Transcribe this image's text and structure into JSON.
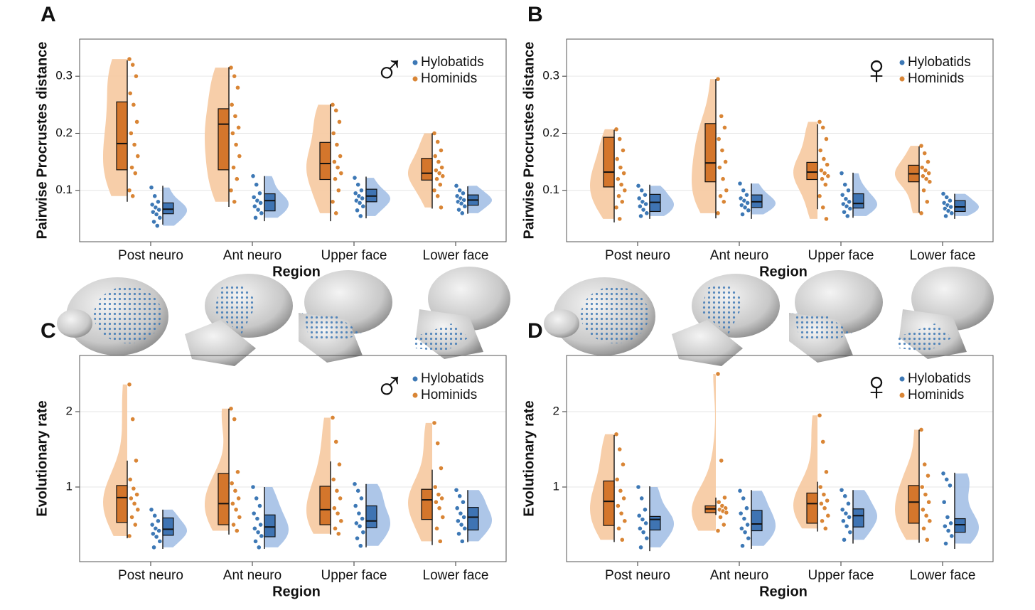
{
  "chart_data": [
    {
      "type": "raincloud",
      "panel": "A",
      "symbol": "♂",
      "ylabel": "Pairwise Procrustes distance",
      "xlabel": "Region",
      "categories": [
        "Post neuro",
        "Ant neuro",
        "Upper face",
        "Lower face"
      ],
      "ylim": [
        0.01,
        0.365
      ],
      "yticks": [
        0.1,
        0.2,
        0.3
      ],
      "grid": true,
      "legend": "upper right",
      "series": [
        {
          "name": "Hylobatids",
          "color": "#3d78b5",
          "fill": "#a4c0e6",
          "box_color": "#3f74b3",
          "boxes": [
            [
              0.04,
              0.059,
              0.067,
              0.078,
              0.108
            ],
            [
              0.046,
              0.064,
              0.082,
              0.094,
              0.125
            ],
            [
              0.051,
              0.08,
              0.09,
              0.102,
              0.124
            ],
            [
              0.059,
              0.074,
              0.083,
              0.092,
              0.107
            ]
          ],
          "points": [
            [
              0.105,
              0.09,
              0.08,
              0.075,
              0.07,
              0.066,
              0.062,
              0.058,
              0.052,
              0.045,
              0.038
            ],
            [
              0.125,
              0.11,
              0.095,
              0.088,
              0.082,
              0.078,
              0.072,
              0.066,
              0.06,
              0.052
            ],
            [
              0.122,
              0.11,
              0.1,
              0.095,
              0.09,
              0.086,
              0.082,
              0.078,
              0.072,
              0.065,
              0.055
            ],
            [
              0.108,
              0.1,
              0.095,
              0.09,
              0.086,
              0.083,
              0.08,
              0.077,
              0.072,
              0.066,
              0.06
            ]
          ]
        },
        {
          "name": "Hominids",
          "color": "#d98535",
          "fill": "#f6c9a0",
          "box_color": "#d4762c",
          "boxes": [
            [
              0.08,
              0.136,
              0.182,
              0.255,
              0.328
            ],
            [
              0.071,
              0.136,
              0.216,
              0.243,
              0.316
            ],
            [
              0.046,
              0.119,
              0.147,
              0.184,
              0.251
            ],
            [
              0.068,
              0.118,
              0.13,
              0.156,
              0.2
            ]
          ],
          "points": [
            [
              0.33,
              0.32,
              0.3,
              0.27,
              0.25,
              0.22,
              0.2,
              0.18,
              0.16,
              0.14,
              0.13,
              0.1,
              0.09
            ],
            [
              0.315,
              0.3,
              0.28,
              0.25,
              0.23,
              0.21,
              0.2,
              0.18,
              0.16,
              0.14,
              0.12,
              0.1,
              0.08
            ],
            [
              0.25,
              0.24,
              0.22,
              0.2,
              0.18,
              0.16,
              0.15,
              0.14,
              0.13,
              0.12,
              0.1,
              0.08,
              0.06
            ],
            [
              0.2,
              0.185,
              0.17,
              0.16,
              0.15,
              0.14,
              0.135,
              0.13,
              0.125,
              0.12,
              0.11,
              0.1,
              0.09,
              0.07
            ]
          ]
        }
      ]
    },
    {
      "type": "raincloud",
      "panel": "B",
      "symbol": "♀",
      "ylabel": "Pairwise Procrustes distance",
      "xlabel": "Region",
      "categories": [
        "Post neuro",
        "Ant neuro",
        "Upper face",
        "Lower face"
      ],
      "ylim": [
        0.01,
        0.365
      ],
      "yticks": [
        0.1,
        0.2,
        0.3
      ],
      "grid": true,
      "legend": "upper right",
      "series": [
        {
          "name": "Hylobatids",
          "color": "#3d78b5",
          "fill": "#a4c0e6",
          "box_color": "#3f74b3",
          "boxes": [
            [
              0.05,
              0.063,
              0.079,
              0.093,
              0.11
            ],
            [
              0.05,
              0.07,
              0.08,
              0.092,
              0.112
            ],
            [
              0.052,
              0.069,
              0.077,
              0.094,
              0.131
            ],
            [
              0.05,
              0.063,
              0.071,
              0.082,
              0.094
            ]
          ],
          "points": [
            [
              0.108,
              0.1,
              0.092,
              0.086,
              0.08,
              0.076,
              0.072,
              0.066,
              0.06,
              0.055
            ],
            [
              0.112,
              0.1,
              0.092,
              0.086,
              0.082,
              0.078,
              0.074,
              0.07,
              0.065,
              0.058
            ],
            [
              0.13,
              0.11,
              0.1,
              0.092,
              0.085,
              0.08,
              0.076,
              0.072,
              0.068,
              0.062,
              0.055
            ],
            [
              0.094,
              0.088,
              0.082,
              0.078,
              0.074,
              0.071,
              0.068,
              0.064,
              0.06,
              0.055
            ]
          ]
        },
        {
          "name": "Hominids",
          "color": "#d98535",
          "fill": "#f6c9a0",
          "box_color": "#d4762c",
          "boxes": [
            [
              0.044,
              0.106,
              0.132,
              0.193,
              0.206
            ],
            [
              0.051,
              0.115,
              0.148,
              0.217,
              0.295
            ],
            [
              0.067,
              0.119,
              0.132,
              0.149,
              0.216
            ],
            [
              0.061,
              0.115,
              0.129,
              0.144,
              0.177
            ]
          ],
          "points": [
            [
              0.207,
              0.19,
              0.17,
              0.155,
              0.14,
              0.13,
              0.12,
              0.11,
              0.1,
              0.09,
              0.08,
              0.07,
              0.05
            ],
            [
              0.295,
              0.23,
              0.21,
              0.19,
              0.17,
              0.15,
              0.14,
              0.12,
              0.1,
              0.09,
              0.08,
              0.06
            ],
            [
              0.22,
              0.21,
              0.19,
              0.17,
              0.155,
              0.145,
              0.135,
              0.13,
              0.125,
              0.12,
              0.11,
              0.09,
              0.07,
              0.05
            ],
            [
              0.178,
              0.165,
              0.15,
              0.14,
              0.135,
              0.13,
              0.125,
              0.12,
              0.115,
              0.1,
              0.08,
              0.06
            ]
          ]
        }
      ]
    },
    {
      "type": "raincloud",
      "panel": "C",
      "symbol": "♂",
      "ylabel": "Evolutionary rate",
      "xlabel": "Region",
      "categories": [
        "Post neuro",
        "Ant neuro",
        "Upper face",
        "Lower face"
      ],
      "ylim": [
        0.01,
        2.745
      ],
      "yticks": [
        1,
        2
      ],
      "grid": true,
      "legend": "upper right",
      "series": [
        {
          "name": "Hylobatids",
          "color": "#3d78b5",
          "fill": "#a4c0e6",
          "box_color": "#3f74b3",
          "boxes": [
            [
              0.18,
              0.36,
              0.44,
              0.59,
              0.7
            ],
            [
              0.18,
              0.34,
              0.47,
              0.63,
              1.0
            ],
            [
              0.2,
              0.46,
              0.55,
              0.75,
              1.04
            ],
            [
              0.27,
              0.43,
              0.6,
              0.73,
              0.96
            ]
          ],
          "points": [
            [
              0.7,
              0.62,
              0.55,
              0.5,
              0.45,
              0.42,
              0.38,
              0.34,
              0.28,
              0.2
            ],
            [
              1.0,
              0.85,
              0.75,
              0.65,
              0.58,
              0.5,
              0.45,
              0.4,
              0.35,
              0.28,
              0.2
            ],
            [
              1.04,
              0.95,
              0.85,
              0.75,
              0.65,
              0.58,
              0.52,
              0.48,
              0.4,
              0.32,
              0.22
            ],
            [
              0.96,
              0.88,
              0.8,
              0.72,
              0.65,
              0.6,
              0.55,
              0.5,
              0.45,
              0.38,
              0.28
            ]
          ]
        },
        {
          "name": "Hominids",
          "color": "#d98535",
          "fill": "#f6c9a0",
          "box_color": "#d4762c",
          "boxes": [
            [
              0.32,
              0.53,
              0.86,
              1.02,
              1.35
            ],
            [
              0.37,
              0.5,
              0.78,
              1.18,
              2.04
            ],
            [
              0.37,
              0.5,
              0.7,
              1.01,
              1.34
            ],
            [
              0.23,
              0.57,
              0.83,
              0.97,
              1.23
            ]
          ],
          "points": [
            [
              2.36,
              1.9,
              1.35,
              1.1,
              0.98,
              0.9,
              0.85,
              0.78,
              0.7,
              0.6,
              0.5,
              0.35
            ],
            [
              2.04,
              1.9,
              1.2,
              1.05,
              0.95,
              0.85,
              0.78,
              0.7,
              0.6,
              0.5,
              0.42
            ],
            [
              1.92,
              1.6,
              1.3,
              1.1,
              0.95,
              0.85,
              0.72,
              0.65,
              0.55,
              0.45,
              0.38
            ],
            [
              1.85,
              1.58,
              1.25,
              1.0,
              0.9,
              0.85,
              0.8,
              0.72,
              0.6,
              0.45,
              0.28
            ]
          ]
        }
      ]
    },
    {
      "type": "raincloud",
      "panel": "D",
      "symbol": "♀",
      "ylabel": "Evolutionary rate",
      "xlabel": "Region",
      "categories": [
        "Post neuro",
        "Ant neuro",
        "Upper face",
        "Lower face"
      ],
      "ylim": [
        0.01,
        2.745
      ],
      "yticks": [
        1,
        2
      ],
      "grid": true,
      "legend": "upper right",
      "series": [
        {
          "name": "Hylobatids",
          "color": "#3d78b5",
          "fill": "#a4c0e6",
          "box_color": "#3f74b3",
          "boxes": [
            [
              0.15,
              0.43,
              0.57,
              0.61,
              1.01
            ],
            [
              0.18,
              0.42,
              0.51,
              0.69,
              0.96
            ],
            [
              0.25,
              0.47,
              0.62,
              0.71,
              0.96
            ],
            [
              0.18,
              0.4,
              0.5,
              0.58,
              1.19
            ]
          ],
          "points": [
            [
              1.0,
              0.85,
              0.7,
              0.62,
              0.57,
              0.52,
              0.45,
              0.4,
              0.32,
              0.2
            ],
            [
              0.95,
              0.85,
              0.72,
              0.65,
              0.58,
              0.5,
              0.45,
              0.4,
              0.32,
              0.22
            ],
            [
              0.96,
              0.88,
              0.78,
              0.7,
              0.65,
              0.6,
              0.55,
              0.48,
              0.4,
              0.3
            ],
            [
              1.18,
              1.1,
              1.02,
              0.8,
              0.6,
              0.52,
              0.48,
              0.42,
              0.35,
              0.25
            ]
          ]
        },
        {
          "name": "Hominids",
          "color": "#d98535",
          "fill": "#f6c9a0",
          "box_color": "#d4762c",
          "boxes": [
            [
              0.27,
              0.49,
              0.81,
              1.08,
              1.69
            ],
            [
              0.63,
              0.66,
              0.71,
              0.75,
              0.86
            ],
            [
              0.41,
              0.52,
              0.78,
              0.92,
              1.07
            ],
            [
              0.26,
              0.52,
              0.8,
              1.02,
              1.76
            ]
          ],
          "points": [
            [
              1.7,
              1.5,
              1.3,
              1.1,
              0.95,
              0.85,
              0.75,
              0.65,
              0.55,
              0.45,
              0.3
            ],
            [
              2.5,
              1.35,
              0.86,
              0.8,
              0.75,
              0.72,
              0.7,
              0.68,
              0.66,
              0.6,
              0.5,
              0.42
            ],
            [
              1.95,
              1.6,
              1.2,
              1.0,
              0.9,
              0.82,
              0.78,
              0.72,
              0.62,
              0.55,
              0.45
            ],
            [
              1.76,
              1.3,
              1.15,
              1.0,
              0.9,
              0.8,
              0.7,
              0.62,
              0.55,
              0.45,
              0.3
            ]
          ]
        }
      ]
    }
  ]
}
